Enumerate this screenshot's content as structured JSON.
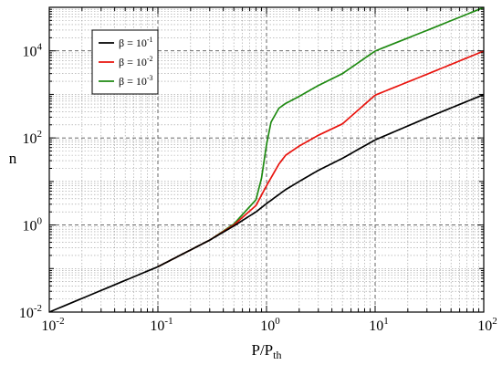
{
  "chart_data": {
    "type": "line",
    "title": "",
    "xlabel": "P/P",
    "xlabel_sub": "th",
    "ylabel": "n",
    "xscale": "log",
    "yscale": "log",
    "xlim": [
      0.01,
      100
    ],
    "ylim": [
      0.01,
      100000
    ],
    "grid": true,
    "grid_minor": true,
    "legend_position": "top-left",
    "x_ticks": [
      {
        "base": "10",
        "exp": "-2",
        "value": 0.01
      },
      {
        "base": "10",
        "exp": "-1",
        "value": 0.1
      },
      {
        "base": "10",
        "exp": "0",
        "value": 1
      },
      {
        "base": "10",
        "exp": "1",
        "value": 10
      },
      {
        "base": "10",
        "exp": "2",
        "value": 100
      }
    ],
    "y_ticks": [
      {
        "base": "10",
        "exp": "-2",
        "value": 0.01
      },
      {
        "base": "10",
        "exp": "0",
        "value": 1
      },
      {
        "base": "10",
        "exp": "2",
        "value": 100
      },
      {
        "base": "10",
        "exp": "4",
        "value": 10000
      }
    ],
    "series": [
      {
        "name": "β = 10",
        "name_sup": "-1",
        "beta": 0.1,
        "color": "#000000",
        "x": [
          0.01,
          0.1,
          0.3,
          0.5,
          0.8,
          1.0,
          1.5,
          2,
          3,
          5,
          10,
          30,
          100
        ],
        "y": [
          0.01,
          0.11,
          0.45,
          0.95,
          2.0,
          3.1,
          6.5,
          10,
          18,
          34,
          90,
          290,
          990
        ]
      },
      {
        "name": "β = 10",
        "name_sup": "-2",
        "beta": 0.01,
        "color": "#e8140e",
        "x": [
          0.1,
          0.3,
          0.5,
          0.8,
          1.0,
          1.3,
          1.5,
          2,
          3,
          5,
          10,
          30,
          100
        ],
        "y": [
          0.11,
          0.45,
          1.0,
          2.8,
          8.0,
          25,
          40,
          65,
          115,
          210,
          960,
          2900,
          9900
        ]
      },
      {
        "name": "β = 10",
        "name_sup": "-3",
        "beta": 0.001,
        "color": "#1f8a12",
        "x": [
          0.1,
          0.3,
          0.5,
          0.8,
          0.9,
          1.0,
          1.1,
          1.3,
          1.5,
          2,
          3,
          5,
          10,
          30,
          100
        ],
        "y": [
          0.11,
          0.45,
          1.05,
          3.8,
          12,
          70,
          230,
          480,
          620,
          900,
          1600,
          3000,
          9900,
          29500,
          99000
        ]
      }
    ]
  }
}
